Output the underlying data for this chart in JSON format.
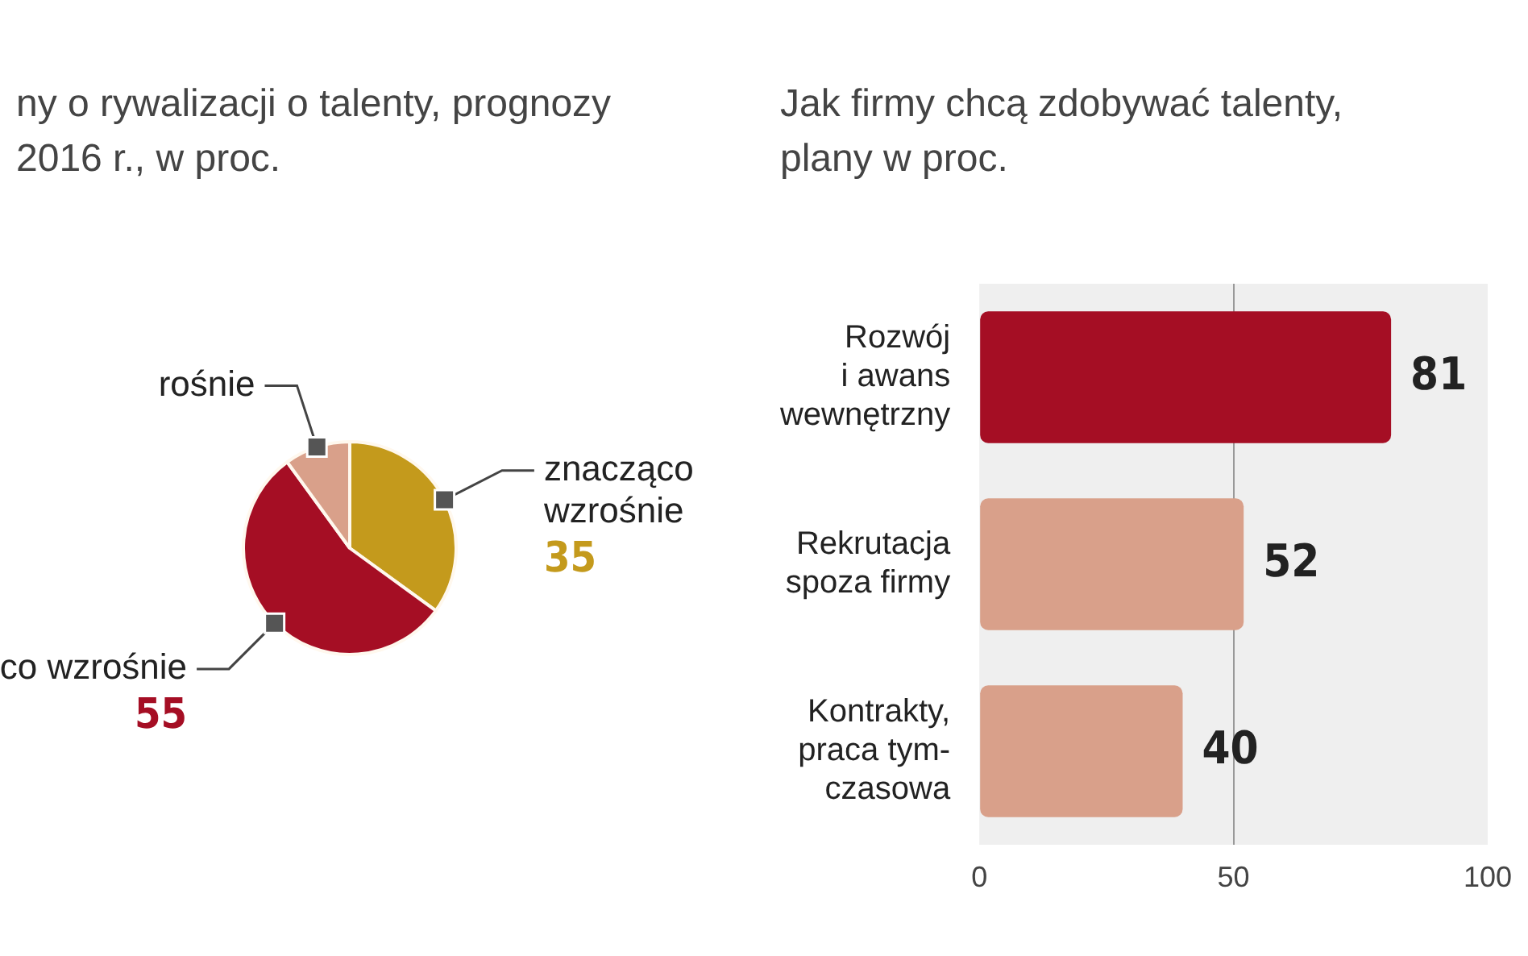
{
  "chart_data": [
    {
      "type": "pie",
      "title": "ny o rywalizacji o talenty, prognozy\n2016 r., w proc.",
      "categories": [
        "znacząco\nwzrośnie",
        "co wzrośnie",
        "rośnie"
      ],
      "values": [
        35,
        55,
        10
      ],
      "colors": [
        "#c49a1c",
        "#a50e24",
        "#d9a08a"
      ],
      "value_labels": [
        "35",
        "55",
        null
      ]
    },
    {
      "type": "bar",
      "orientation": "horizontal",
      "title": "Jak firmy chcą zdobywać talenty,\nplany w proc.",
      "categories": [
        "Rozwój\ni awans\nwewnętrzny",
        "Rekrutacja\nspoza firmy",
        "Kontrakty,\npraca tym-\nczasowa"
      ],
      "values": [
        81,
        52,
        40
      ],
      "colors": [
        "#a50e24",
        "#d9a08a",
        "#d9a08a"
      ],
      "xlim": [
        0,
        100
      ],
      "xticks": [
        0,
        50,
        100
      ],
      "grid": "x",
      "data_labels": true
    }
  ]
}
